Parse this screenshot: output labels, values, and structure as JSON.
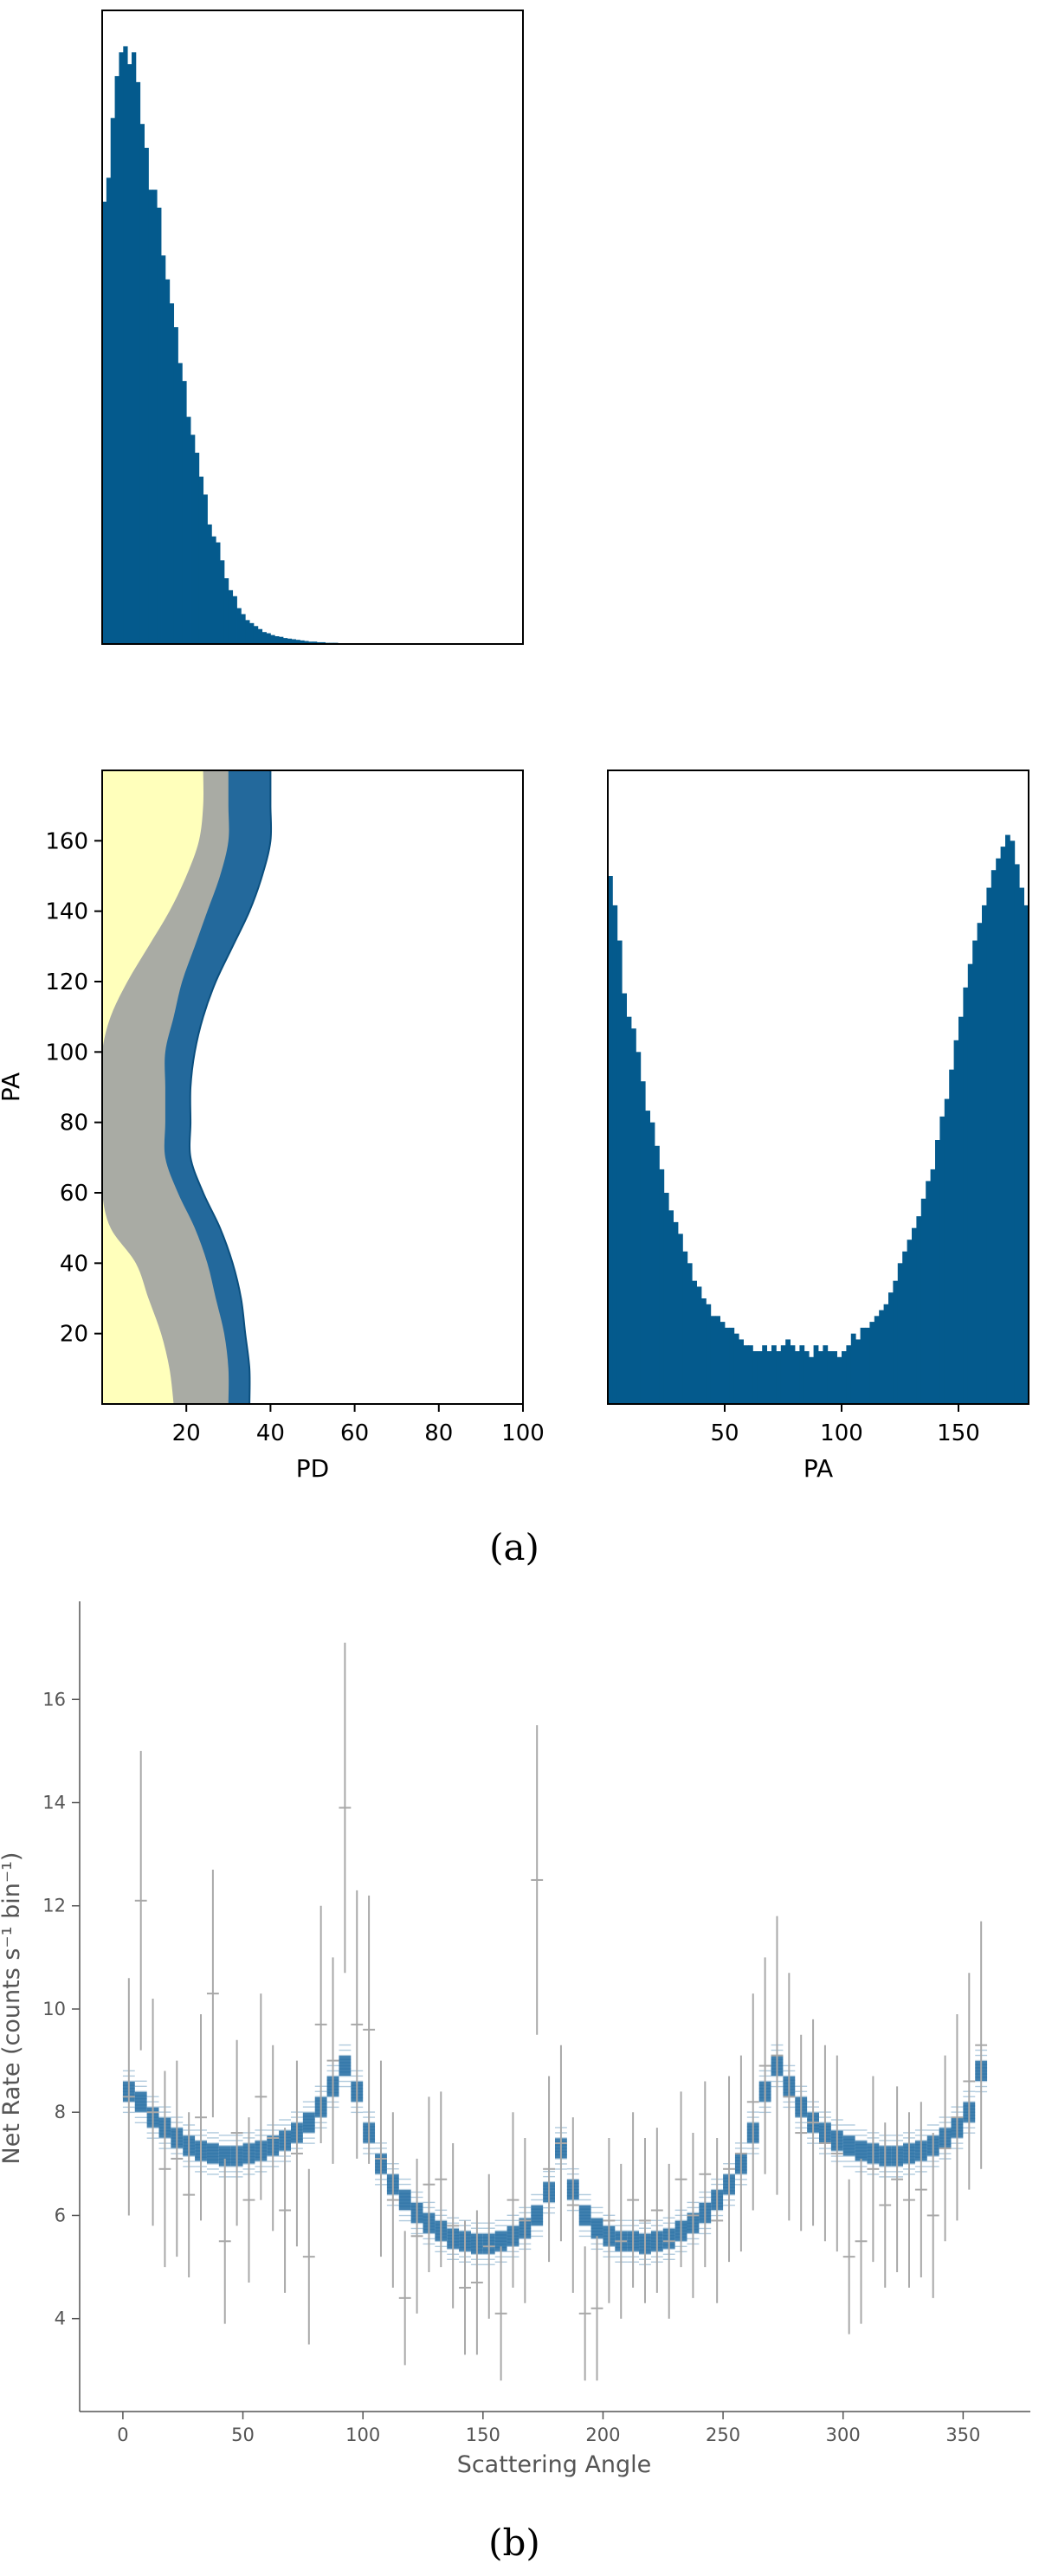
{
  "colors": {
    "bar": "#045a8d",
    "contour_outer": "#23699c",
    "contour_mid": "#a9aba4",
    "contour_inner": "#ffffbb",
    "model_line": "#1f6aa1",
    "errorbar": "#a8a8a8",
    "axis_b": "#555555"
  },
  "captions": {
    "a": "(a)",
    "b": "(b)"
  },
  "chart_data": [
    {
      "id": "pd_marginal",
      "type": "bar",
      "title": "",
      "xlabel": "",
      "ylabel": "",
      "xlim": [
        0,
        100
      ],
      "ylim": [
        0,
        1.06
      ],
      "show_ticks": false,
      "bin_width": 1,
      "bin_starts": [
        0,
        1,
        2,
        3,
        4,
        5,
        6,
        7,
        8,
        9,
        10,
        11,
        12,
        13,
        14,
        15,
        16,
        17,
        18,
        19,
        20,
        21,
        22,
        23,
        24,
        25,
        26,
        27,
        28,
        29,
        30,
        31,
        32,
        33,
        34,
        35,
        36,
        37,
        38,
        39,
        40,
        41,
        42,
        43,
        44,
        45,
        46,
        47,
        48,
        49,
        50,
        51,
        52,
        53,
        54,
        55
      ],
      "values": [
        0.74,
        0.78,
        0.88,
        0.95,
        0.99,
        1.0,
        0.97,
        0.99,
        0.94,
        0.87,
        0.83,
        0.76,
        0.76,
        0.73,
        0.65,
        0.61,
        0.57,
        0.53,
        0.47,
        0.44,
        0.38,
        0.35,
        0.32,
        0.28,
        0.25,
        0.2,
        0.18,
        0.17,
        0.14,
        0.11,
        0.09,
        0.08,
        0.06,
        0.05,
        0.04,
        0.035,
        0.03,
        0.025,
        0.02,
        0.018,
        0.015,
        0.013,
        0.012,
        0.01,
        0.009,
        0.008,
        0.007,
        0.006,
        0.005,
        0.004,
        0.004,
        0.003,
        0.003,
        0.002,
        0.002,
        0.002
      ]
    },
    {
      "id": "pd_pa_contour",
      "type": "area",
      "title": "",
      "xlabel": "PD",
      "ylabel": "PA",
      "xlim": [
        0,
        100
      ],
      "ylim": [
        0,
        180
      ],
      "xticks": [
        20,
        40,
        60,
        80,
        100
      ],
      "yticks": [
        20,
        40,
        60,
        80,
        100,
        120,
        140,
        160
      ],
      "pa_grid": [
        0,
        10,
        20,
        30,
        40,
        50,
        60,
        70,
        80,
        90,
        100,
        110,
        120,
        130,
        140,
        150,
        160,
        170,
        180
      ],
      "levels": [
        {
          "name": "outer",
          "pd_max": [
            35,
            35,
            34,
            33,
            31,
            28,
            24,
            21,
            21,
            21,
            22,
            24,
            27,
            31,
            35,
            38,
            40,
            40,
            40
          ]
        },
        {
          "name": "middle",
          "pd_max": [
            30,
            30,
            29,
            27,
            25,
            22,
            18,
            15,
            15,
            15,
            15,
            17,
            19,
            22,
            25,
            28,
            30,
            30,
            30
          ]
        },
        {
          "name": "inner",
          "pd_max": [
            17,
            16,
            14,
            11,
            8,
            2,
            0,
            0,
            0,
            0,
            0,
            2,
            6,
            11,
            16,
            20,
            23,
            24,
            24
          ]
        }
      ]
    },
    {
      "id": "pa_marginal",
      "type": "bar",
      "title": "",
      "xlabel": "PA",
      "ylabel": "",
      "xlim": [
        0,
        180
      ],
      "ylim": [
        0,
        1.08
      ],
      "xticks": [
        50,
        100,
        150
      ],
      "bin_width": 2,
      "bin_starts": [
        0,
        2,
        4,
        6,
        8,
        10,
        12,
        14,
        16,
        18,
        20,
        22,
        24,
        26,
        28,
        30,
        32,
        34,
        36,
        38,
        40,
        42,
        44,
        46,
        48,
        50,
        52,
        54,
        56,
        58,
        60,
        62,
        64,
        66,
        68,
        70,
        72,
        74,
        76,
        78,
        80,
        82,
        84,
        86,
        88,
        90,
        92,
        94,
        96,
        98,
        100,
        102,
        104,
        106,
        108,
        110,
        112,
        114,
        116,
        118,
        120,
        122,
        124,
        126,
        128,
        130,
        132,
        134,
        136,
        138,
        140,
        142,
        144,
        146,
        148,
        150,
        152,
        154,
        156,
        158,
        160,
        162,
        164,
        166,
        168,
        170,
        172,
        174,
        176,
        178
      ],
      "values": [
        0.9,
        0.85,
        0.79,
        0.7,
        0.66,
        0.64,
        0.6,
        0.55,
        0.5,
        0.48,
        0.44,
        0.4,
        0.36,
        0.33,
        0.31,
        0.29,
        0.26,
        0.24,
        0.21,
        0.2,
        0.18,
        0.17,
        0.15,
        0.15,
        0.14,
        0.13,
        0.13,
        0.12,
        0.11,
        0.1,
        0.1,
        0.09,
        0.09,
        0.1,
        0.09,
        0.1,
        0.09,
        0.1,
        0.11,
        0.1,
        0.09,
        0.1,
        0.09,
        0.08,
        0.1,
        0.09,
        0.1,
        0.09,
        0.09,
        0.08,
        0.09,
        0.1,
        0.12,
        0.11,
        0.13,
        0.13,
        0.14,
        0.15,
        0.16,
        0.17,
        0.19,
        0.21,
        0.24,
        0.26,
        0.28,
        0.3,
        0.32,
        0.35,
        0.38,
        0.4,
        0.45,
        0.49,
        0.52,
        0.57,
        0.62,
        0.66,
        0.71,
        0.75,
        0.79,
        0.82,
        0.85,
        0.88,
        0.91,
        0.93,
        0.95,
        0.97,
        0.96,
        0.92,
        0.88,
        0.85
      ]
    },
    {
      "id": "scattering_angle",
      "type": "scatter",
      "title": "",
      "xlabel": "Scattering Angle",
      "ylabel": "Net Rate (counts s⁻¹ bin⁻¹)",
      "xlim": [
        -18,
        378
      ],
      "ylim": [
        2.2,
        17.9
      ],
      "xticks": [
        0,
        50,
        100,
        150,
        200,
        250,
        300,
        350
      ],
      "yticks": [
        4,
        6,
        8,
        10,
        12,
        14,
        16
      ],
      "grid": false,
      "bin_width": 5,
      "x": [
        2.5,
        7.5,
        12.5,
        17.5,
        22.5,
        27.5,
        32.5,
        37.5,
        42.5,
        47.5,
        52.5,
        57.5,
        62.5,
        67.5,
        72.5,
        77.5,
        82.5,
        87.5,
        92.5,
        97.5,
        102.5,
        107.5,
        112.5,
        117.5,
        122.5,
        127.5,
        132.5,
        137.5,
        142.5,
        147.5,
        152.5,
        157.5,
        162.5,
        167.5,
        172.5,
        177.5,
        182.5,
        187.5,
        192.5,
        197.5,
        202.5,
        207.5,
        212.5,
        217.5,
        222.5,
        227.5,
        232.5,
        237.5,
        242.5,
        247.5,
        252.5,
        257.5,
        262.5,
        267.5,
        272.5,
        277.5,
        282.5,
        287.5,
        292.5,
        297.5,
        302.5,
        307.5,
        312.5,
        317.5,
        322.5,
        327.5,
        332.5,
        337.5,
        342.5,
        347.5,
        352.5,
        357.5
      ],
      "observed": [
        8.3,
        12.1,
        8.0,
        6.9,
        7.1,
        6.4,
        7.9,
        10.3,
        5.5,
        7.6,
        6.3,
        8.3,
        7.5,
        6.1,
        7.2,
        5.2,
        9.7,
        9.0,
        13.9,
        9.7,
        9.6,
        7.1,
        6.3,
        4.4,
        5.6,
        6.6,
        6.7,
        5.8,
        4.6,
        4.7,
        5.4,
        4.1,
        6.3,
        5.9,
        12.5,
        6.9,
        7.4,
        6.2,
        4.1,
        4.2,
        5.9,
        5.5,
        6.3,
        5.9,
        6.1,
        5.5,
        6.7,
        6.0,
        6.8,
        5.9,
        6.9,
        7.2,
        8.2,
        8.9,
        9.1,
        8.3,
        7.6,
        7.8,
        7.4,
        7.2,
        5.2,
        5.5,
        6.9,
        6.2,
        6.7,
        6.3,
        6.5,
        6.0,
        7.3,
        7.9,
        8.6,
        9.3
      ],
      "error": [
        2.3,
        2.9,
        2.2,
        1.9,
        1.9,
        1.6,
        2.0,
        2.4,
        1.6,
        1.8,
        1.6,
        2.0,
        1.8,
        1.6,
        1.8,
        1.7,
        2.3,
        2.0,
        3.2,
        2.6,
        2.6,
        1.9,
        1.7,
        1.3,
        1.5,
        1.7,
        1.7,
        1.6,
        1.3,
        1.4,
        1.4,
        1.3,
        1.7,
        1.6,
        3.0,
        1.8,
        1.9,
        1.7,
        1.3,
        1.4,
        1.6,
        1.5,
        1.7,
        1.6,
        1.6,
        1.5,
        1.7,
        1.6,
        1.8,
        1.6,
        1.8,
        1.9,
        2.1,
        2.1,
        2.7,
        2.4,
        1.9,
        2.0,
        1.9,
        1.9,
        1.5,
        1.6,
        1.8,
        1.6,
        1.8,
        1.7,
        1.7,
        1.6,
        1.8,
        2.0,
        2.1,
        2.4
      ],
      "model_center": [
        8.4,
        8.2,
        7.9,
        7.7,
        7.5,
        7.35,
        7.25,
        7.2,
        7.15,
        7.15,
        7.2,
        7.25,
        7.35,
        7.45,
        7.6,
        7.8,
        8.1,
        8.5,
        8.9,
        8.4,
        7.6,
        7.0,
        6.6,
        6.3,
        6.05,
        5.85,
        5.7,
        5.55,
        5.5,
        5.45,
        5.45,
        5.5,
        5.6,
        5.75,
        6.0,
        6.45,
        7.3,
        6.5,
        6.0,
        5.75,
        5.6,
        5.5,
        5.5,
        5.45,
        5.5,
        5.55,
        5.7,
        5.85,
        6.05,
        6.3,
        6.6,
        7.0,
        7.6,
        8.4,
        8.9,
        8.5,
        8.1,
        7.8,
        7.6,
        7.45,
        7.35,
        7.25,
        7.2,
        7.15,
        7.15,
        7.2,
        7.25,
        7.35,
        7.5,
        7.7,
        8.0,
        8.8
      ],
      "model_spread": 0.35
    }
  ]
}
